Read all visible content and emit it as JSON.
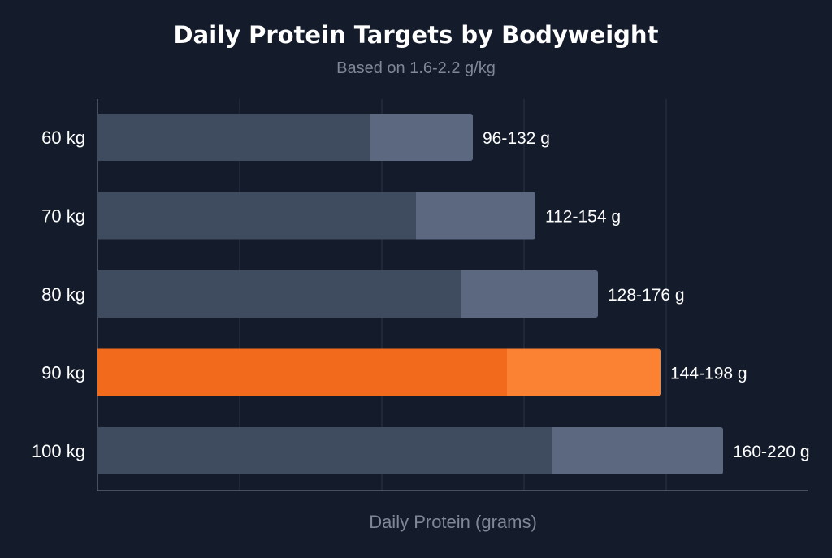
{
  "chart_data": {
    "type": "bar",
    "orientation": "horizontal",
    "title": "Daily Protein Targets by Bodyweight",
    "subtitle": "Based on 1.6-2.2 g/kg",
    "xlabel": "Daily Protein (grams)",
    "ylabel": "",
    "xlim": [
      0,
      250
    ],
    "grid": true,
    "categories": [
      "60 kg",
      "70 kg",
      "80 kg",
      "90 kg",
      "100 kg"
    ],
    "series": [
      {
        "values": [
          96,
          112,
          128,
          144,
          160
        ]
      },
      {
        "values": [
          132,
          154,
          176,
          198,
          220
        ]
      }
    ],
    "data_labels": [
      "96-132 g",
      "112-154 g",
      "128-176 g",
      "144-198 g",
      "160-220 g"
    ],
    "highlight_category": "90 kg"
  },
  "colors": {
    "background": "#141b2b",
    "bar_min": "#3f4b5e",
    "bar_max": "#5b6880",
    "highlight_min": "#f26b1d",
    "highlight_max": "#fb8233",
    "grid": "#2a3345",
    "axis": "#5a6273",
    "text": "#ffffff",
    "muted": "#7f8898"
  }
}
